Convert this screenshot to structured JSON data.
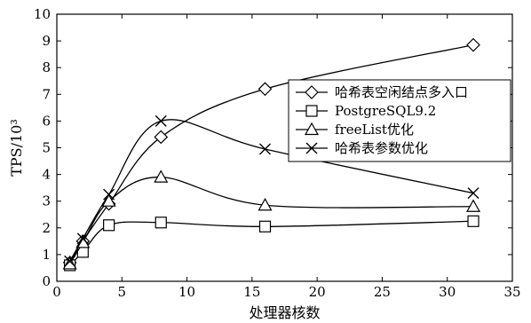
{
  "chart_data": {
    "type": "line",
    "xlabel": "处理器核数",
    "ylabel": "TPS/10³",
    "xlim": [
      0,
      35
    ],
    "ylim": [
      0,
      10
    ],
    "xticks": [
      0,
      5,
      10,
      15,
      20,
      25,
      30,
      35
    ],
    "yticks": [
      0,
      1,
      2,
      3,
      4,
      5,
      6,
      7,
      8,
      9,
      10
    ],
    "grid": false,
    "legend_position": "center-right",
    "series": [
      {
        "name": "哈希表空闲结点多入口",
        "marker": "diamond",
        "x": [
          1,
          2,
          4,
          8,
          16,
          32
        ],
        "y": [
          0.7,
          1.5,
          2.9,
          5.4,
          7.2,
          8.85
        ]
      },
      {
        "name": "PostgreSQL9.2",
        "marker": "square",
        "x": [
          1,
          2,
          4,
          8,
          16,
          32
        ],
        "y": [
          0.6,
          1.1,
          2.1,
          2.2,
          2.05,
          2.25
        ]
      },
      {
        "name": "freeList优化",
        "marker": "triangle",
        "x": [
          1,
          2,
          4,
          8,
          16,
          32
        ],
        "y": [
          0.65,
          1.45,
          3.0,
          3.9,
          2.85,
          2.8
        ]
      },
      {
        "name": "哈希表参数优化",
        "marker": "x",
        "x": [
          1,
          2,
          4,
          8,
          16,
          32
        ],
        "y": [
          0.75,
          1.6,
          3.25,
          6.0,
          4.95,
          3.3
        ]
      }
    ]
  }
}
